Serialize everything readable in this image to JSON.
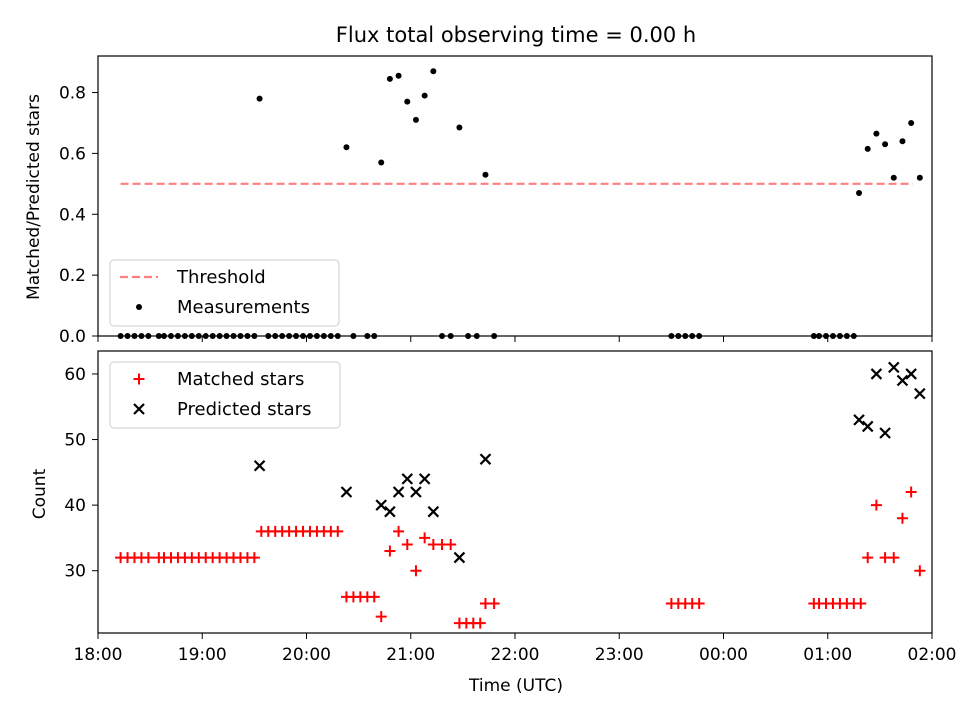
{
  "chart_data": [
    {
      "type": "scatter",
      "title": "Flux total observing time = 0.00 h",
      "xlabel": "",
      "ylabel": "Matched/Predicted stars",
      "xlim": [
        "18:00",
        "02:00"
      ],
      "ylim": [
        0,
        0.92
      ],
      "yticks": [
        "0.0",
        "0.2",
        "0.4",
        "0.6",
        "0.8"
      ],
      "legend": {
        "placement": "lower-left",
        "entries": [
          "Threshold",
          "Measurements"
        ]
      },
      "grid": false,
      "threshold": {
        "name": "Threshold",
        "value": 0.5,
        "x_start": "18:13",
        "x_end": "01:49",
        "color": "#ff7f7f",
        "style": "dashed"
      },
      "series": [
        {
          "name": "Measurements",
          "color": "#000000",
          "marker": "dot",
          "points": [
            [
              "18:13",
              0
            ],
            [
              "18:17",
              0
            ],
            [
              "18:21",
              0
            ],
            [
              "18:25",
              0
            ],
            [
              "18:29",
              0
            ],
            [
              "18:35",
              0
            ],
            [
              "18:38",
              0
            ],
            [
              "18:42",
              0
            ],
            [
              "18:46",
              0
            ],
            [
              "18:50",
              0
            ],
            [
              "18:54",
              0
            ],
            [
              "18:58",
              0
            ],
            [
              "19:02",
              0
            ],
            [
              "19:06",
              0
            ],
            [
              "19:10",
              0
            ],
            [
              "19:14",
              0
            ],
            [
              "19:18",
              0
            ],
            [
              "19:22",
              0
            ],
            [
              "19:26",
              0
            ],
            [
              "19:30",
              0
            ],
            [
              "19:33",
              0.78
            ],
            [
              "19:38",
              0
            ],
            [
              "19:42",
              0
            ],
            [
              "19:46",
              0
            ],
            [
              "19:50",
              0
            ],
            [
              "19:54",
              0
            ],
            [
              "19:58",
              0
            ],
            [
              "20:02",
              0
            ],
            [
              "20:06",
              0
            ],
            [
              "20:10",
              0
            ],
            [
              "20:14",
              0
            ],
            [
              "20:18",
              0
            ],
            [
              "20:23",
              0.62
            ],
            [
              "20:27",
              0
            ],
            [
              "20:35",
              0
            ],
            [
              "20:39",
              0
            ],
            [
              "20:43",
              0.57
            ],
            [
              "20:48",
              0.845
            ],
            [
              "20:53",
              0.855
            ],
            [
              "20:58",
              0.77
            ],
            [
              "21:03",
              0.71
            ],
            [
              "21:08",
              0.79
            ],
            [
              "21:13",
              0.87
            ],
            [
              "21:18",
              0
            ],
            [
              "21:23",
              0
            ],
            [
              "21:28",
              0.685
            ],
            [
              "21:33",
              0
            ],
            [
              "21:38",
              0
            ],
            [
              "21:43",
              0.53
            ],
            [
              "21:48",
              0
            ],
            [
              "23:30",
              0
            ],
            [
              "23:34",
              0
            ],
            [
              "23:38",
              0
            ],
            [
              "23:42",
              0
            ],
            [
              "23:46",
              0
            ],
            [
              "00:52",
              0
            ],
            [
              "00:55",
              0
            ],
            [
              "00:59",
              0
            ],
            [
              "01:03",
              0
            ],
            [
              "01:07",
              0
            ],
            [
              "01:11",
              0
            ],
            [
              "01:15",
              0
            ],
            [
              "01:18",
              0.47
            ],
            [
              "01:23",
              0.615
            ],
            [
              "01:28",
              0.665
            ],
            [
              "01:33",
              0.63
            ],
            [
              "01:38",
              0.52
            ],
            [
              "01:43",
              0.64
            ],
            [
              "01:48",
              0.7
            ],
            [
              "01:53",
              0.52
            ]
          ]
        }
      ]
    },
    {
      "type": "scatter",
      "title": "",
      "xlabel": "Time (UTC)",
      "ylabel": "Count",
      "xlim": [
        "18:00",
        "02:00"
      ],
      "ylim": [
        20.5,
        63.5
      ],
      "xticks": [
        "18:00",
        "19:00",
        "20:00",
        "21:00",
        "22:00",
        "23:00",
        "00:00",
        "01:00",
        "02:00"
      ],
      "yticks": [
        "30",
        "40",
        "50",
        "60"
      ],
      "legend": {
        "placement": "upper-left",
        "entries": [
          "Matched stars",
          "Predicted stars"
        ]
      },
      "grid": false,
      "series": [
        {
          "name": "Matched stars",
          "color": "#ff0000",
          "marker": "plus",
          "points": [
            [
              "18:13",
              32
            ],
            [
              "18:17",
              32
            ],
            [
              "18:21",
              32
            ],
            [
              "18:25",
              32
            ],
            [
              "18:29",
              32
            ],
            [
              "18:35",
              32
            ],
            [
              "18:38",
              32
            ],
            [
              "18:42",
              32
            ],
            [
              "18:46",
              32
            ],
            [
              "18:50",
              32
            ],
            [
              "18:54",
              32
            ],
            [
              "18:58",
              32
            ],
            [
              "19:02",
              32
            ],
            [
              "19:06",
              32
            ],
            [
              "19:10",
              32
            ],
            [
              "19:14",
              32
            ],
            [
              "19:18",
              32
            ],
            [
              "19:22",
              32
            ],
            [
              "19:26",
              32
            ],
            [
              "19:30",
              32
            ],
            [
              "19:34",
              36
            ],
            [
              "19:38",
              36
            ],
            [
              "19:42",
              36
            ],
            [
              "19:46",
              36
            ],
            [
              "19:50",
              36
            ],
            [
              "19:54",
              36
            ],
            [
              "19:58",
              36
            ],
            [
              "20:02",
              36
            ],
            [
              "20:06",
              36
            ],
            [
              "20:10",
              36
            ],
            [
              "20:14",
              36
            ],
            [
              "20:18",
              36
            ],
            [
              "20:23",
              26
            ],
            [
              "20:27",
              26
            ],
            [
              "20:31",
              26
            ],
            [
              "20:35",
              26
            ],
            [
              "20:39",
              26
            ],
            [
              "20:43",
              23
            ],
            [
              "20:48",
              33
            ],
            [
              "20:53",
              36
            ],
            [
              "20:58",
              34
            ],
            [
              "21:03",
              30
            ],
            [
              "21:08",
              35
            ],
            [
              "21:13",
              34
            ],
            [
              "21:18",
              34
            ],
            [
              "21:23",
              34
            ],
            [
              "21:28",
              22
            ],
            [
              "21:32",
              22
            ],
            [
              "21:36",
              22
            ],
            [
              "21:40",
              22
            ],
            [
              "21:43",
              25
            ],
            [
              "21:48",
              25
            ],
            [
              "23:30",
              25
            ],
            [
              "23:34",
              25
            ],
            [
              "23:38",
              25
            ],
            [
              "23:42",
              25
            ],
            [
              "23:46",
              25
            ],
            [
              "00:52",
              25
            ],
            [
              "00:55",
              25
            ],
            [
              "00:59",
              25
            ],
            [
              "01:03",
              25
            ],
            [
              "01:07",
              25
            ],
            [
              "01:11",
              25
            ],
            [
              "01:15",
              25
            ],
            [
              "01:19",
              25
            ],
            [
              "01:23",
              32
            ],
            [
              "01:28",
              40
            ],
            [
              "01:33",
              32
            ],
            [
              "01:38",
              32
            ],
            [
              "01:43",
              38
            ],
            [
              "01:48",
              42
            ],
            [
              "01:53",
              30
            ]
          ]
        },
        {
          "name": "Predicted stars",
          "color": "#000000",
          "marker": "x",
          "points": [
            [
              "19:33",
              46
            ],
            [
              "20:23",
              42
            ],
            [
              "20:43",
              40
            ],
            [
              "20:48",
              39
            ],
            [
              "20:53",
              42
            ],
            [
              "20:58",
              44
            ],
            [
              "21:03",
              42
            ],
            [
              "21:08",
              44
            ],
            [
              "21:13",
              39
            ],
            [
              "21:28",
              32
            ],
            [
              "21:43",
              47
            ],
            [
              "01:18",
              53
            ],
            [
              "01:23",
              52
            ],
            [
              "01:28",
              60
            ],
            [
              "01:33",
              51
            ],
            [
              "01:38",
              61
            ],
            [
              "01:43",
              59
            ],
            [
              "01:48",
              60
            ],
            [
              "01:53",
              57
            ]
          ]
        }
      ]
    }
  ]
}
